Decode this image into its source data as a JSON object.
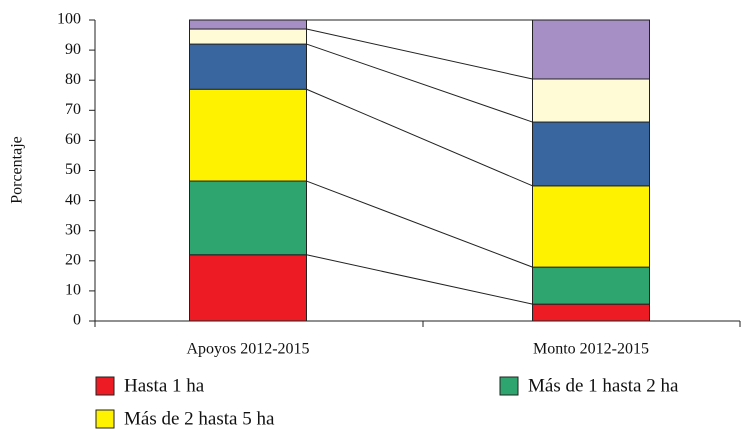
{
  "chart_data": {
    "type": "stacked_bar",
    "ylabel": "Porcentaje",
    "categories": [
      "Apoyos 2012-2015",
      "Monto 2012-2015"
    ],
    "series": [
      {
        "name": "Hasta 1 ha",
        "color": "#ed1c24",
        "values": [
          22,
          5.6
        ]
      },
      {
        "name": "Más de 1 hasta 2 ha",
        "color": "#2ea56e",
        "values": [
          24.5,
          12.3
        ]
      },
      {
        "name": "Más de 2 hasta 5 ha",
        "color": "#fff200",
        "values": [
          30.5,
          27
        ]
      },
      {
        "color": "#3a66a0",
        "values": [
          15,
          21.2
        ]
      },
      {
        "color": "#fffbd6",
        "values": [
          5,
          14.3
        ]
      },
      {
        "color": "#a68fc4",
        "values": [
          3,
          19.6
        ]
      }
    ],
    "ylim": [
      0,
      100
    ],
    "yticks": [
      0,
      10,
      20,
      30,
      40,
      50,
      60,
      70,
      80,
      90,
      100
    ]
  }
}
